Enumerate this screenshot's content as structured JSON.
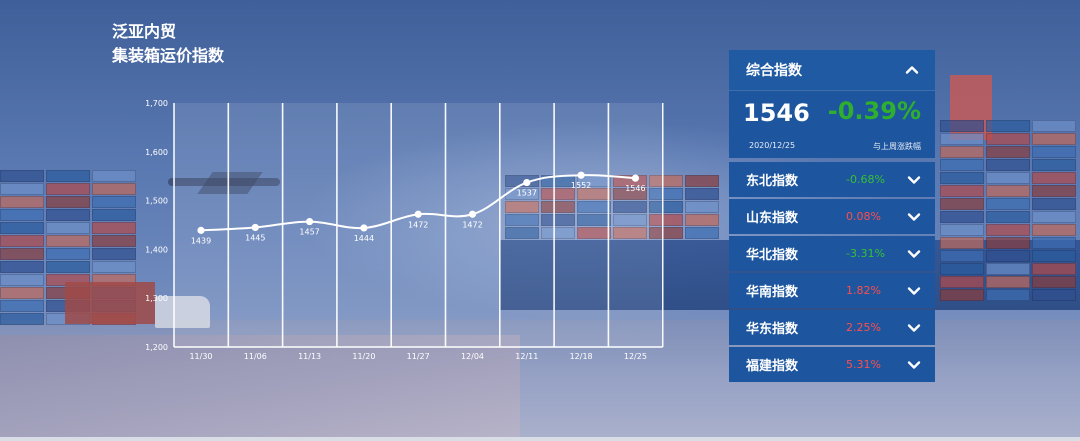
{
  "title": {
    "line1": "泛亚内贸",
    "line2": "集装箱运价指数"
  },
  "chart_data": {
    "type": "line",
    "categories": [
      "11/30",
      "11/06",
      "11/13",
      "11/20",
      "11/27",
      "12/04",
      "12/11",
      "12/18",
      "12/25"
    ],
    "series": [
      {
        "values": [
          1439,
          1445,
          1457,
          1444,
          1472,
          1472,
          1537,
          1552,
          1546
        ]
      }
    ],
    "ylim": [
      1200,
      1700
    ],
    "yticks": [
      "1,200",
      "1,300",
      "1,400",
      "1,500",
      "1,600",
      "1,700"
    ],
    "grid": "vertical",
    "title": "",
    "xlabel": "",
    "ylabel": "",
    "line_color": "#ffffff"
  },
  "panel": {
    "header_label": "综合指数",
    "main_value": "1546",
    "main_change": "-0.39%",
    "main_date": "2020/12/25",
    "main_note": "与上周涨跌幅",
    "regions": [
      {
        "name": "东北指数",
        "change": "-0.68%",
        "trend": "down"
      },
      {
        "name": "山东指数",
        "change": "0.08%",
        "trend": "up"
      },
      {
        "name": "华北指数",
        "change": "-3.31%",
        "trend": "down"
      },
      {
        "name": "华南指数",
        "change": "1.82%",
        "trend": "up"
      },
      {
        "name": "华东指数",
        "change": "2.25%",
        "trend": "up"
      },
      {
        "name": "福建指数",
        "change": "5.31%",
        "trend": "up"
      }
    ],
    "colors": {
      "up": "#ff4d4d",
      "down": "#35c035",
      "panel": "#1d569e"
    }
  }
}
